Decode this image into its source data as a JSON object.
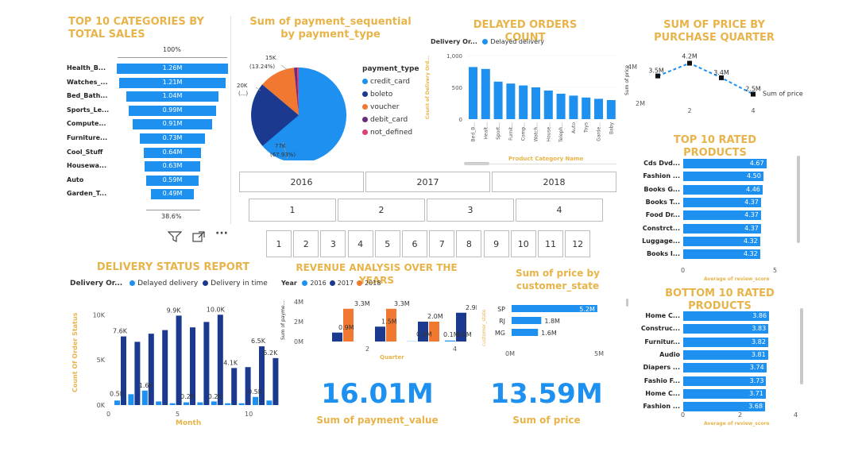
{
  "top10_categories": {
    "title": "TOP 10 CATEGORIES BY TOTAL SALES",
    "top_pct": "100%",
    "bottom_pct": "38.6%",
    "rows": [
      {
        "label": "Health_B...",
        "value": "1.26M",
        "pct": 1.0
      },
      {
        "label": "Watches_...",
        "value": "1.21M",
        "pct": 0.96
      },
      {
        "label": "Bed_Bath...",
        "value": "1.04M",
        "pct": 0.83
      },
      {
        "label": "Sports_Le...",
        "value": "0.99M",
        "pct": 0.79
      },
      {
        "label": "Compute...",
        "value": "0.91M",
        "pct": 0.72
      },
      {
        "label": "Furniture...",
        "value": "0.73M",
        "pct": 0.58
      },
      {
        "label": "Cool_Stuff",
        "value": "0.64M",
        "pct": 0.51
      },
      {
        "label": "Housewa...",
        "value": "0.63M",
        "pct": 0.5
      },
      {
        "label": "Auto",
        "value": "0.59M",
        "pct": 0.47
      },
      {
        "label": "Garden_T...",
        "value": "0.49M",
        "pct": 0.39
      }
    ]
  },
  "visual_toolbar": {
    "filter_icon": "filter-icon",
    "focus_icon": "focus-mode-icon",
    "more_icon": "more-options-icon",
    "more_label": "···"
  },
  "payment_pie": {
    "title": "Sum of payment_sequential by payment_type",
    "legend_title": "payment_type",
    "legend": [
      {
        "label": "credit_card",
        "color": "#1E90F0"
      },
      {
        "label": "boleto",
        "color": "#1B3A8F"
      },
      {
        "label": "voucher",
        "color": "#F07830"
      },
      {
        "label": "debit_card",
        "color": "#6B2C7A"
      },
      {
        "label": "not_defined",
        "color": "#E0407A"
      }
    ],
    "labels": {
      "a": "15K",
      "a_pct": "(13.24%)",
      "b": "20K",
      "b_pct": "(...)",
      "c": "77K",
      "c_pct": "(67.93%)"
    }
  },
  "delayed_orders": {
    "title": "DELAYED ORDERS COUNT",
    "legend_prefix": "Delivery Or...",
    "legend_item": "Delayed delivery",
    "ylabel": "Count of Delivery Ord...",
    "xlabel": "Product Category Name",
    "yticks": [
      "1,000",
      "500",
      "0"
    ],
    "categories": [
      "Bed_B...",
      "Healt...",
      "Sport...",
      "Furnit...",
      "Comp...",
      "Watch...",
      "House...",
      "Teleph...",
      "Auto",
      "Toys",
      "Garde...",
      "Baby"
    ],
    "values": [
      820,
      790,
      590,
      560,
      530,
      500,
      450,
      400,
      370,
      340,
      320,
      300
    ]
  },
  "price_quarter": {
    "title": "SUM OF PRICE BY PURCHASE QUARTER",
    "ylabel": "Sum of price",
    "yticks": [
      "4M",
      "2M"
    ],
    "xticks": [
      "2",
      "4"
    ],
    "points": [
      {
        "q": 1,
        "v": "3.5M"
      },
      {
        "q": 2,
        "v": "4.2M"
      },
      {
        "q": 3,
        "v": "3.4M"
      },
      {
        "q": 4,
        "v": "2.5M"
      }
    ],
    "series_label": "Sum of price"
  },
  "top_rated": {
    "title": "TOP 10 RATED PRODUCTS",
    "xlabel": "Average of review_score",
    "xticks": [
      "0",
      "5"
    ],
    "rows": [
      {
        "label": "Cds Dvd...",
        "value": "4.67"
      },
      {
        "label": "Fashion ...",
        "value": "4.50"
      },
      {
        "label": "Books G...",
        "value": "4.46"
      },
      {
        "label": "Books T...",
        "value": "4.37"
      },
      {
        "label": "Food Dr...",
        "value": "4.37"
      },
      {
        "label": "Constrct...",
        "value": "4.37"
      },
      {
        "label": "Luggage...",
        "value": "4.32"
      },
      {
        "label": "Books I...",
        "value": "4.32"
      }
    ]
  },
  "bottom_rated": {
    "title": "BOTTOM 10 RATED PRODUCTS",
    "xlabel": "Average of review_score",
    "xticks": [
      "0",
      "2",
      "4"
    ],
    "rows": [
      {
        "label": "Home C...",
        "value": "3.86"
      },
      {
        "label": "Construc...",
        "value": "3.83"
      },
      {
        "label": "Furnitur...",
        "value": "3.82"
      },
      {
        "label": "Audio",
        "value": "3.81"
      },
      {
        "label": "Diapers ...",
        "value": "3.74"
      },
      {
        "label": "Fashio F...",
        "value": "3.73"
      },
      {
        "label": "Home C...",
        "value": "3.71"
      },
      {
        "label": "Fashion ...",
        "value": "3.68"
      }
    ]
  },
  "slicers": {
    "years": [
      "2016",
      "2017",
      "2018"
    ],
    "quarters": [
      "1",
      "2",
      "3",
      "4"
    ],
    "months": [
      "1",
      "2",
      "3",
      "4",
      "5",
      "6",
      "7",
      "8",
      "9",
      "10",
      "11",
      "12"
    ]
  },
  "delivery_status": {
    "title": "DELIVERY STATUS REPORT",
    "legend_prefix": "Delivery Or...",
    "legend": [
      {
        "label": "Delayed delivery",
        "color": "#1E90F0"
      },
      {
        "label": "Delivery in time",
        "color": "#1B3A8F"
      }
    ],
    "ylabel": "Count Of Order Status",
    "xlabel": "Month",
    "yticks": [
      "10K",
      "5K",
      "0K"
    ],
    "xticks": [
      "0",
      "5",
      "10"
    ],
    "labels": [
      "7.6K",
      "9.9K",
      "10.0K",
      "4.1K",
      "6.5K",
      "5.2K",
      "0.5K",
      "1.6K",
      "0.2K",
      "0.2K",
      "0.5K"
    ],
    "in_time": [
      7.6,
      7.0,
      7.9,
      8.3,
      9.9,
      8.6,
      9.2,
      10.0,
      4.1,
      4.2,
      6.5,
      5.2
    ],
    "delayed": [
      0.5,
      1.2,
      1.6,
      0.4,
      0.2,
      0.3,
      0.3,
      0.4,
      0.2,
      0.2,
      0.9,
      0.5
    ]
  },
  "revenue": {
    "title": "REVENUE ANALYSIS OVER THE YEARS",
    "legend_prefix": "Year",
    "legend": [
      {
        "label": "2016",
        "color": "#1E90F0"
      },
      {
        "label": "2017",
        "color": "#1B3A8F"
      },
      {
        "label": "2018",
        "color": "#F07830"
      }
    ],
    "ylabel": "Sum of payme...",
    "xlabel": "Quarter",
    "yticks": [
      "4M",
      "2M",
      "0M"
    ],
    "xticks": [
      "2",
      "4"
    ],
    "labels": [
      "3.3M",
      "0.9M",
      "3.3M",
      "1.5M",
      "2.0M",
      "0.0M",
      "2.9M",
      "0.1M",
      "0.0M"
    ]
  },
  "state_price": {
    "title": "Sum of price by customer_state",
    "ylabel": "customer_state",
    "xticks": [
      "0M",
      "5M"
    ],
    "rows": [
      {
        "label": "SP",
        "value": "5.2M",
        "v": 5.2
      },
      {
        "label": "RJ",
        "value": "1.8M",
        "v": 1.8
      },
      {
        "label": "MG",
        "value": "1.6M",
        "v": 1.6
      }
    ]
  },
  "kpis": [
    {
      "value": "16.01M",
      "label": "Sum of payment_value"
    },
    {
      "value": "13.59M",
      "label": "Sum of price"
    }
  ]
}
